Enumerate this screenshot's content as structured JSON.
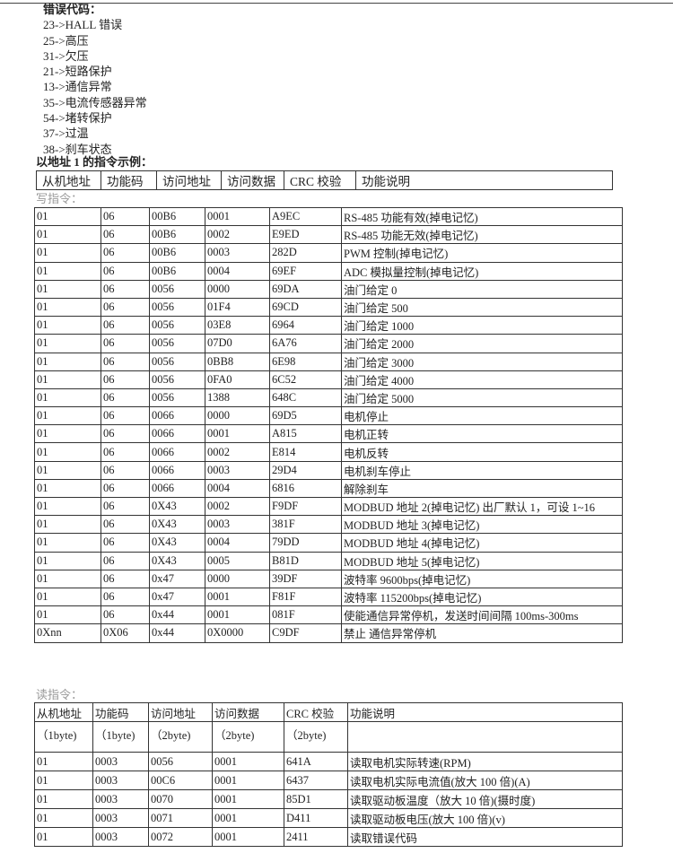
{
  "error_codes": {
    "title": "错误代码：",
    "items": [
      "23->HALL 错误",
      "25->高压",
      "31->欠压",
      "21->短路保护",
      "13->通信异常",
      "35->电流传感器异常",
      "54->堵转保护",
      "37->过温",
      "38->刹车状态"
    ]
  },
  "example_title": "以地址 1 的指令示例：",
  "header": [
    "从机地址",
    "功能码",
    "访问地址",
    "访问数据",
    "CRC  校验",
    "功能说明"
  ],
  "write_label": "写指令：",
  "write_rows": [
    [
      "01",
      "06",
      "00B6",
      "0001",
      "A9EC",
      "RS-485 功能有效(掉电记忆)"
    ],
    [
      "01",
      "06",
      "00B6",
      "0002",
      "E9ED",
      "RS-485 功能无效(掉电记忆)"
    ],
    [
      "01",
      "06",
      "00B6",
      "0003",
      "282D",
      "PWM 控制(掉电记忆)"
    ],
    [
      "01",
      "06",
      "00B6",
      "0004",
      "69EF",
      "ADC 模拟量控制(掉电记忆)"
    ],
    [
      "01",
      "06",
      "0056",
      "0000",
      "69DA",
      "油门给定 0"
    ],
    [
      "01",
      "06",
      "0056",
      "01F4",
      "69CD",
      "油门给定 500"
    ],
    [
      "01",
      "06",
      "0056",
      "03E8",
      "6964",
      "油门给定 1000"
    ],
    [
      "01",
      "06",
      "0056",
      "07D0",
      "6A76",
      "油门给定 2000"
    ],
    [
      "01",
      "06",
      "0056",
      "0BB8",
      "6E98",
      "油门给定 3000"
    ],
    [
      "01",
      "06",
      "0056",
      "0FA0",
      "6C52",
      "油门给定 4000"
    ],
    [
      "01",
      "06",
      "0056",
      "1388",
      "648C",
      "油门给定 5000"
    ],
    [
      "01",
      "06",
      "0066",
      "0000",
      "69D5",
      "电机停止"
    ],
    [
      "01",
      "06",
      "0066",
      "0001",
      "A815",
      "电机正转"
    ],
    [
      "01",
      "06",
      "0066",
      "0002",
      "E814",
      "电机反转"
    ],
    [
      "01",
      "06",
      "0066",
      "0003",
      "29D4",
      "电机刹车停止"
    ],
    [
      "01",
      "06",
      "0066",
      "0004",
      "6816",
      "解除刹车"
    ],
    [
      "01",
      "06",
      "0X43",
      "0002",
      "F9DF",
      "MODBUD 地址 2(掉电记忆) 出厂默认 1，可设 1~16"
    ],
    [
      "01",
      "06",
      "0X43",
      "0003",
      "381F",
      "MODBUD 地址 3(掉电记忆)"
    ],
    [
      "01",
      "06",
      "0X43",
      "0004",
      "79DD",
      "MODBUD 地址 4(掉电记忆)"
    ],
    [
      "01",
      "06",
      "0X43",
      "0005",
      "B81D",
      "MODBUD 地址 5(掉电记忆)"
    ],
    [
      "01",
      "06",
      "0x47",
      "0000",
      "39DF",
      "波特率 9600bps(掉电记忆)"
    ],
    [
      "01",
      "06",
      "0x47",
      "0001",
      "F81F",
      "波特率 115200bps(掉电记忆)"
    ],
    [
      "01",
      "06",
      "0x44",
      "0001",
      "081F",
      "使能通信异常停机，发送时间间隔 100ms-300ms"
    ],
    [
      "0Xnn",
      "0X06",
      "0x44",
      "0X0000",
      "C9DF",
      "禁止 通信异常停机"
    ]
  ],
  "read_label": "读指令：",
  "read_header": [
    "从机地址",
    "功能码",
    "访问地址",
    "访问数据",
    "CRC  校验",
    "功能说明"
  ],
  "read_bytes": [
    "（1byte)",
    "（1byte)",
    "（2byte)",
    "（2byte)",
    "（2byte)",
    ""
  ],
  "read_rows": [
    [
      "01",
      "0003",
      "0056",
      "0001",
      "641A",
      "读取电机实际转速(RPM)"
    ],
    [
      "01",
      "0003",
      "00C6",
      "0001",
      "6437",
      "读取电机实际电流值(放大 100 倍)(A)"
    ],
    [
      "01",
      "0003",
      "0070",
      "0001",
      "85D1",
      "读取驱动板温度（放大 10 倍)(摄时度)"
    ],
    [
      "01",
      "0003",
      "0071",
      "0001",
      "D411",
      "读取驱动板电压(放大 100 倍)(v)"
    ],
    [
      "01",
      "0003",
      "0072",
      "0001",
      "2411",
      "读取错误代码"
    ]
  ]
}
